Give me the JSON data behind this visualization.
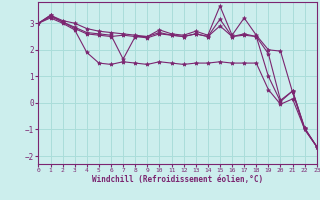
{
  "xlabel": "Windchill (Refroidissement éolien,°C)",
  "background_color": "#cceeed",
  "grid_color": "#aaddda",
  "line_color": "#7b2570",
  "xlim": [
    0,
    23
  ],
  "ylim": [
    -2.3,
    3.8
  ],
  "yticks": [
    -2,
    -1,
    0,
    1,
    2,
    3
  ],
  "xticks": [
    0,
    1,
    2,
    3,
    4,
    5,
    6,
    7,
    8,
    9,
    10,
    11,
    12,
    13,
    14,
    15,
    16,
    17,
    18,
    19,
    20,
    21,
    22,
    23
  ],
  "series": [
    [
      3.0,
      3.3,
      3.1,
      3.0,
      2.8,
      2.7,
      2.65,
      2.6,
      2.55,
      2.5,
      2.75,
      2.6,
      2.55,
      2.7,
      2.55,
      3.65,
      2.55,
      3.2,
      2.55,
      2.0,
      1.95,
      0.4,
      -1.0,
      -1.65
    ],
    [
      3.0,
      3.25,
      3.05,
      2.8,
      2.6,
      2.55,
      2.5,
      2.55,
      2.5,
      2.5,
      2.65,
      2.55,
      2.5,
      2.6,
      2.5,
      3.15,
      2.5,
      2.6,
      2.5,
      1.85,
      0.1,
      0.45,
      -0.95,
      -1.65
    ],
    [
      3.0,
      3.3,
      3.05,
      2.85,
      2.65,
      2.6,
      2.55,
      1.65,
      2.5,
      2.45,
      2.6,
      2.55,
      2.5,
      2.6,
      2.5,
      2.9,
      2.5,
      2.55,
      2.5,
      1.0,
      0.05,
      0.45,
      -0.95,
      -1.65
    ],
    [
      3.0,
      3.2,
      3.0,
      2.75,
      1.9,
      1.5,
      1.45,
      1.55,
      1.5,
      1.45,
      1.55,
      1.5,
      1.45,
      1.5,
      1.5,
      1.55,
      1.5,
      1.5,
      1.5,
      0.5,
      -0.05,
      0.15,
      -1.0,
      -1.65
    ]
  ]
}
